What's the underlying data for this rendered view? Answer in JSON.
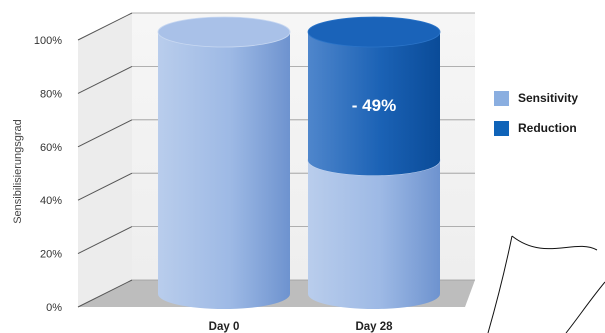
{
  "chart_data": {
    "type": "bar",
    "style": "3d-cylinder-stacked",
    "ylabel": "Sensibilisierungsgrad",
    "xlabel": "",
    "ylim": [
      0,
      100
    ],
    "yticks": [
      0,
      20,
      40,
      60,
      80,
      100
    ],
    "ytick_labels": [
      "0%",
      "20%",
      "40%",
      "60%",
      "80%",
      "100%"
    ],
    "categories": [
      "Day 0",
      "Day 28"
    ],
    "series": [
      {
        "name": "Sensitivity",
        "color": "#8aaee0",
        "values": [
          100,
          51
        ]
      },
      {
        "name": "Reduction",
        "color": "#0f63b8",
        "values": [
          0,
          49
        ]
      }
    ],
    "annotations": [
      {
        "category": "Day 28",
        "series": "Reduction",
        "text": "- 49%"
      }
    ],
    "legend_position": "right",
    "grid": true
  }
}
